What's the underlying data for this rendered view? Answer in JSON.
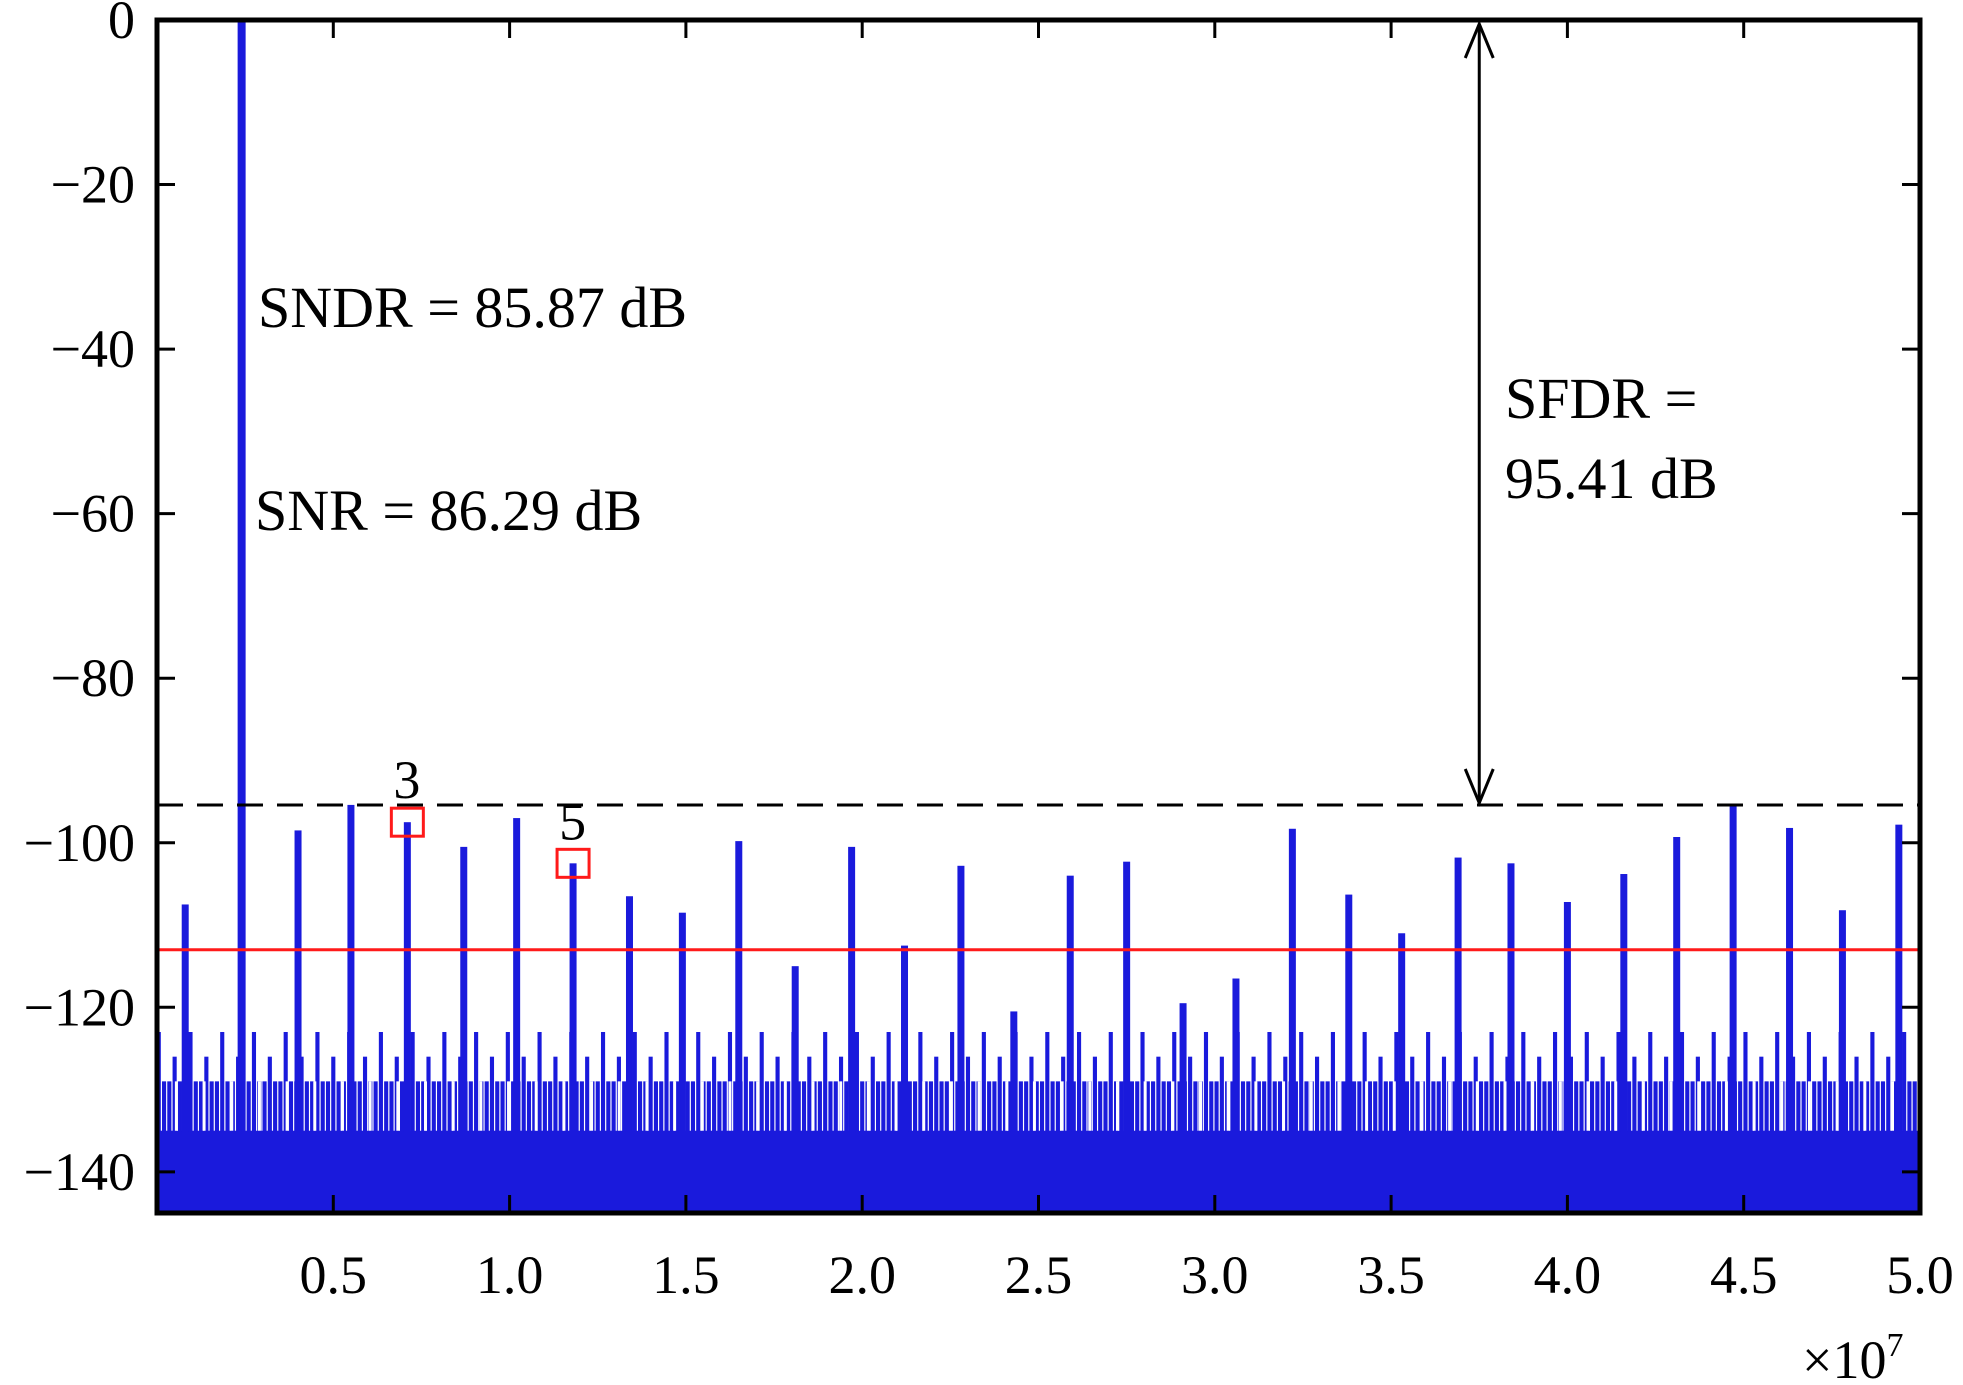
{
  "chart_data": {
    "type": "bar",
    "title": "",
    "xlabel": "",
    "ylabel": "",
    "xlim": [
      0,
      5.0
    ],
    "ylim": [
      -145,
      0
    ],
    "x_scale_label": "×10",
    "x_scale_exponent": "7",
    "xticks": [
      {
        "value": 0.5,
        "label": "0.5"
      },
      {
        "value": 1.0,
        "label": "1.0"
      },
      {
        "value": 1.5,
        "label": "1.5"
      },
      {
        "value": 2.0,
        "label": "2.0"
      },
      {
        "value": 2.5,
        "label": "2.5"
      },
      {
        "value": 3.0,
        "label": "3.0"
      },
      {
        "value": 3.5,
        "label": "3.5"
      },
      {
        "value": 4.0,
        "label": "4.0"
      },
      {
        "value": 4.5,
        "label": "4.5"
      },
      {
        "value": 5.0,
        "label": "5.0"
      }
    ],
    "yticks": [
      {
        "value": 0,
        "label": "0"
      },
      {
        "value": -20,
        "label": "−20"
      },
      {
        "value": -40,
        "label": "−40"
      },
      {
        "value": -60,
        "label": "−60"
      },
      {
        "value": -80,
        "label": "−80"
      },
      {
        "value": -100,
        "label": "−100"
      },
      {
        "value": -120,
        "label": "−120"
      },
      {
        "value": -140,
        "label": "−140"
      }
    ],
    "fundamental": {
      "x": 0.24,
      "y": 0
    },
    "spurs": [
      {
        "x": 0.08,
        "y": -107.5
      },
      {
        "x": 0.4,
        "y": -98.5
      },
      {
        "x": 0.55,
        "y": -95.4
      },
      {
        "x": 0.71,
        "y": -97.5
      },
      {
        "x": 0.87,
        "y": -100.5
      },
      {
        "x": 1.02,
        "y": -97.0
      },
      {
        "x": 1.18,
        "y": -102.5
      },
      {
        "x": 1.34,
        "y": -106.5
      },
      {
        "x": 1.49,
        "y": -108.5
      },
      {
        "x": 1.65,
        "y": -99.8
      },
      {
        "x": 1.81,
        "y": -115.0
      },
      {
        "x": 1.97,
        "y": -100.5
      },
      {
        "x": 2.12,
        "y": -112.5
      },
      {
        "x": 2.28,
        "y": -102.8
      },
      {
        "x": 2.43,
        "y": -120.5
      },
      {
        "x": 2.59,
        "y": -104.0
      },
      {
        "x": 2.75,
        "y": -102.3
      },
      {
        "x": 2.91,
        "y": -119.5
      },
      {
        "x": 3.06,
        "y": -116.5
      },
      {
        "x": 3.22,
        "y": -98.3
      },
      {
        "x": 3.38,
        "y": -106.3
      },
      {
        "x": 3.53,
        "y": -111.0
      },
      {
        "x": 3.69,
        "y": -101.8
      },
      {
        "x": 3.84,
        "y": -102.5
      },
      {
        "x": 4.0,
        "y": -107.2
      },
      {
        "x": 4.16,
        "y": -103.8
      },
      {
        "x": 4.31,
        "y": -99.3
      },
      {
        "x": 4.47,
        "y": -95.4
      },
      {
        "x": 4.63,
        "y": -98.2
      },
      {
        "x": 4.78,
        "y": -108.2
      },
      {
        "x": 4.94,
        "y": -97.8
      }
    ],
    "noise_floor": {
      "top": -123,
      "mid": -129,
      "bottom": -135
    },
    "sfdr_line": -95.41,
    "noise_line": -113,
    "harmonic_markers": [
      {
        "label": "3",
        "x": 0.71,
        "y": -97.5
      },
      {
        "label": "5",
        "x": 1.18,
        "y": -102.5
      }
    ],
    "annotations": {
      "sndr": "SNDR = 85.87 dB",
      "snr": "SNR = 86.29 dB",
      "sfdr_line1": "SFDR =",
      "sfdr_line2": "95.41 dB"
    },
    "colors": {
      "spectrum": "#1a1adc",
      "noise_line": "#ff1a1a",
      "marker": "#ff1a1a",
      "sfdr_line": "#000000",
      "axes": "#000000"
    }
  }
}
